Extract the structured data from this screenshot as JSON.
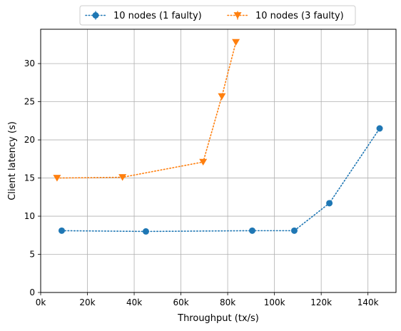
{
  "chart_data": {
    "type": "line",
    "title": "",
    "xlabel": "Throughput (tx/s)",
    "ylabel": "Client latency (s)",
    "xlim": [
      0,
      152000
    ],
    "ylim": [
      0,
      34.5
    ],
    "x_ticks": [
      0,
      20000,
      40000,
      60000,
      80000,
      100000,
      120000,
      140000
    ],
    "x_tick_labels": [
      "0k",
      "20k",
      "40k",
      "60k",
      "80k",
      "100k",
      "120k",
      "140k"
    ],
    "y_ticks": [
      0,
      5,
      10,
      15,
      20,
      25,
      30
    ],
    "y_tick_labels": [
      "0",
      "5",
      "10",
      "15",
      "20",
      "25",
      "30"
    ],
    "grid": true,
    "legend_position": "top-center-outside",
    "series": [
      {
        "name": "10 nodes (1 faulty)",
        "color": "#1f77b4",
        "marker": "circle",
        "linestyle": "dotted",
        "points": [
          {
            "x": 9000,
            "y": 8.1
          },
          {
            "x": 45000,
            "y": 8.0
          },
          {
            "x": 90500,
            "y": 8.1
          },
          {
            "x": 108500,
            "y": 8.1
          },
          {
            "x": 123500,
            "y": 11.7
          },
          {
            "x": 145000,
            "y": 21.5
          }
        ]
      },
      {
        "name": "10 nodes (3 faulty)",
        "color": "#ff7f0e",
        "marker": "triangle-down",
        "linestyle": "dotted",
        "points": [
          {
            "x": 7000,
            "y": 15.0
          },
          {
            "x": 35000,
            "y": 15.1
          },
          {
            "x": 69500,
            "y": 17.1
          },
          {
            "x": 77500,
            "y": 25.7
          },
          {
            "x": 83500,
            "y": 32.8
          }
        ]
      }
    ]
  }
}
